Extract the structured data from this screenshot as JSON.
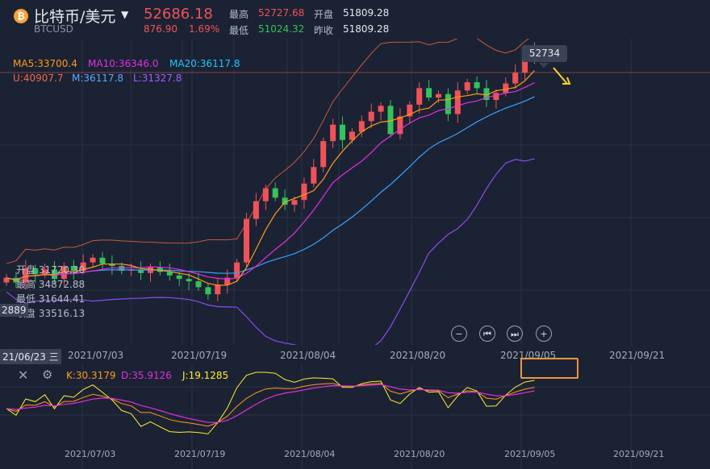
{
  "header": {
    "coin_glyph": "₿",
    "title": "比特币/美元",
    "symbol": "BTCUSD",
    "price": "52686.18",
    "change": "876.90",
    "change_pct": "1.69%",
    "high_label": "最高",
    "high": "52727.68",
    "open_label": "开盘",
    "open": "51809.28",
    "low_label": "最低",
    "low": "51024.32",
    "prev_close_label": "昨收",
    "prev_close": "51809.28"
  },
  "indicators": {
    "ma5": "MA5:33700.4",
    "ma10": "MA10:36346.0",
    "ma20": "MA20:36117.8",
    "boll_u": "U:40907.7",
    "boll_m": "M:36117.8",
    "boll_l": "L:31327.8"
  },
  "crosshair": {
    "open_label": "开盘",
    "open": "31720.30",
    "high_label": "最高",
    "high": "34872.88",
    "low_label": "最低",
    "low": "31644.41",
    "close_label": "收盘",
    "close": "33516.13",
    "left_price": "2889",
    "date_label": "21/06/23 三"
  },
  "tooltip_price": "52734",
  "controls": [
    "−",
    "⏮",
    "⏭",
    "+"
  ],
  "main_dates": [
    "2021/07/03",
    "2021/07/19",
    "2021/08/04",
    "2021/08/20",
    "2021/09/05",
    "2021/09/21"
  ],
  "kdj": {
    "k": "K:30.3179",
    "d": "D:35.9126",
    "j": "J:19.1285"
  },
  "sub_dates": [
    "2021/07/03",
    "2021/07/19",
    "2021/08/04",
    "2021/08/20",
    "2021/09/05",
    "2021/09/21"
  ],
  "colors": {
    "up": "#f0525a",
    "down": "#35c25b",
    "ma5": "#ff9b1a",
    "ma10": "#e030e0",
    "ma20": "#1ec8ff",
    "boll_upper": "#c85a3a",
    "boll_mid": "#3aa0ff",
    "boll_lower": "#8a4cf0",
    "kdj_k": "#ff9b1a",
    "kdj_d": "#e030e0",
    "kdj_j": "#ffee33"
  },
  "chart_data": {
    "type": "candlestick",
    "closes": [
      33200,
      32800,
      34000,
      33500,
      33900,
      33100,
      34200,
      33800,
      34500,
      34900,
      34400,
      34200,
      33800,
      33900,
      33600,
      34100,
      33700,
      33400,
      33100,
      32900,
      32400,
      31800,
      32600,
      33200,
      34500,
      38200,
      39700,
      40800,
      40000,
      39400,
      39800,
      41200,
      42600,
      44800,
      46200,
      44900,
      45600,
      46500,
      47300,
      47800,
      45400,
      46900,
      47900,
      49300,
      48500,
      48800,
      47100,
      49100,
      49800,
      49300,
      48300,
      48900,
      49700,
      50600,
      52100,
      52686
    ],
    "boll_upper_range": [
      31327.8,
      40907.7
    ]
  }
}
